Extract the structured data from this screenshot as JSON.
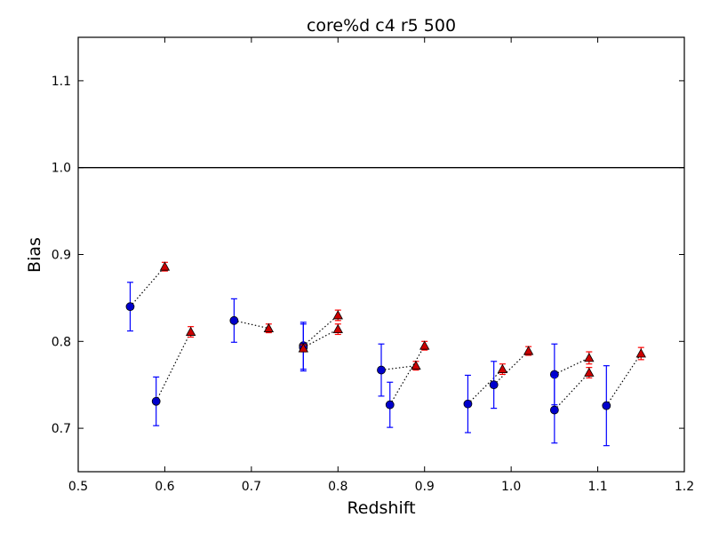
{
  "chart_data": {
    "type": "scatter",
    "title": "core%d c4 r5 500",
    "xlabel": "Redshift",
    "ylabel": "Bias",
    "xlim": [
      0.5,
      1.2
    ],
    "ylim": [
      0.65,
      1.15
    ],
    "xticks": [
      "0.5",
      "0.6",
      "0.7",
      "0.8",
      "0.9",
      "1.0",
      "1.1",
      "1.2"
    ],
    "yticks": [
      "0.7",
      "0.8",
      "0.9",
      "1.0",
      "1.1"
    ],
    "reference_line_y": 1.0,
    "grid": false,
    "series": [
      {
        "marker": "circle",
        "color": "#0000cc",
        "errorbar_color": "#0000ff",
        "points": [
          {
            "x": 0.56,
            "y": 0.84,
            "err": 0.028
          },
          {
            "x": 0.59,
            "y": 0.731,
            "err": 0.028
          },
          {
            "x": 0.68,
            "y": 0.824,
            "err": 0.025
          },
          {
            "x": 0.76,
            "y": 0.795,
            "err": 0.027
          },
          {
            "x": 0.76,
            "y": 0.793,
            "err": 0.027
          },
          {
            "x": 0.85,
            "y": 0.767,
            "err": 0.03
          },
          {
            "x": 0.86,
            "y": 0.727,
            "err": 0.026
          },
          {
            "x": 0.95,
            "y": 0.728,
            "err": 0.033
          },
          {
            "x": 0.98,
            "y": 0.75,
            "err": 0.027
          },
          {
            "x": 1.05,
            "y": 0.762,
            "err": 0.035
          },
          {
            "x": 1.05,
            "y": 0.721,
            "err": 0.038
          },
          {
            "x": 1.11,
            "y": 0.726,
            "err": 0.046
          }
        ]
      },
      {
        "marker": "triangle",
        "color": "#cc0000",
        "errorbar_color": "#ff0000",
        "points": [
          {
            "x": 0.6,
            "y": 0.886,
            "err": 0.005
          },
          {
            "x": 0.63,
            "y": 0.811,
            "err": 0.006
          },
          {
            "x": 0.72,
            "y": 0.815,
            "err": 0.005
          },
          {
            "x": 0.76,
            "y": 0.792,
            "err": 0.004
          },
          {
            "x": 0.8,
            "y": 0.83,
            "err": 0.006
          },
          {
            "x": 0.8,
            "y": 0.814,
            "err": 0.006
          },
          {
            "x": 0.89,
            "y": 0.772,
            "err": 0.005
          },
          {
            "x": 0.9,
            "y": 0.795,
            "err": 0.005
          },
          {
            "x": 0.99,
            "y": 0.768,
            "err": 0.006
          },
          {
            "x": 1.02,
            "y": 0.789,
            "err": 0.005
          },
          {
            "x": 1.09,
            "y": 0.781,
            "err": 0.007
          },
          {
            "x": 1.09,
            "y": 0.764,
            "err": 0.006
          },
          {
            "x": 1.15,
            "y": 0.786,
            "err": 0.007
          }
        ]
      }
    ],
    "connectors": [
      [
        [
          0.56,
          0.84
        ],
        [
          0.6,
          0.886
        ]
      ],
      [
        [
          0.59,
          0.731
        ],
        [
          0.63,
          0.811
        ]
      ],
      [
        [
          0.68,
          0.824
        ],
        [
          0.72,
          0.815
        ]
      ],
      [
        [
          0.76,
          0.795
        ],
        [
          0.8,
          0.83
        ]
      ],
      [
        [
          0.76,
          0.793
        ],
        [
          0.8,
          0.814
        ]
      ],
      [
        [
          0.85,
          0.767
        ],
        [
          0.89,
          0.772
        ]
      ],
      [
        [
          0.86,
          0.727
        ],
        [
          0.9,
          0.795
        ]
      ],
      [
        [
          0.95,
          0.728
        ],
        [
          0.99,
          0.768
        ]
      ],
      [
        [
          0.98,
          0.75
        ],
        [
          1.02,
          0.789
        ]
      ],
      [
        [
          1.05,
          0.762
        ],
        [
          1.09,
          0.781
        ]
      ],
      [
        [
          1.05,
          0.721
        ],
        [
          1.09,
          0.764
        ]
      ],
      [
        [
          1.11,
          0.726
        ],
        [
          1.15,
          0.786
        ]
      ]
    ]
  }
}
